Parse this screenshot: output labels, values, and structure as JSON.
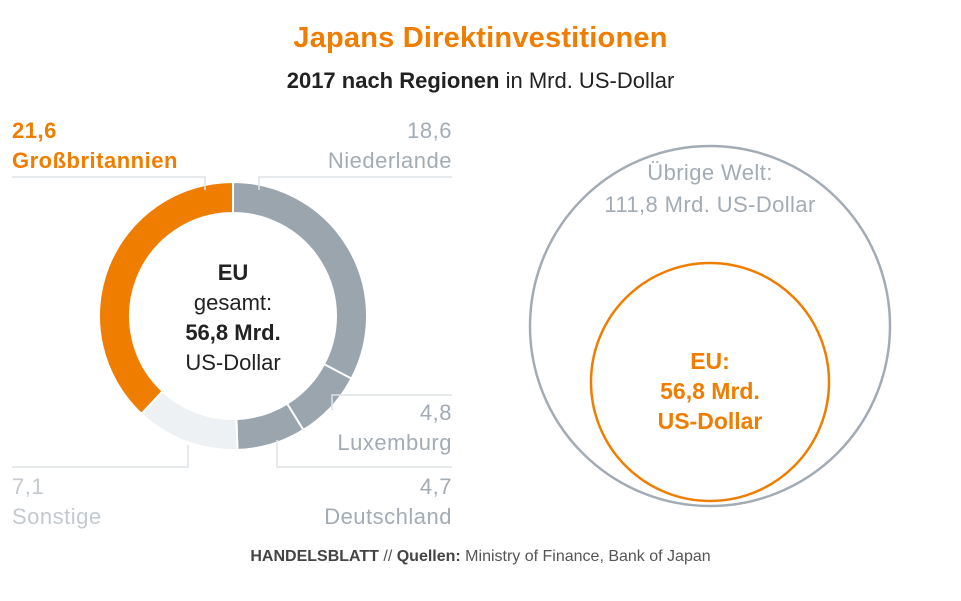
{
  "header": {
    "title": "Japans Direktinvestitionen",
    "subtitle_bold": "2017 nach Regionen",
    "subtitle_rest": " in Mrd. US-Dollar"
  },
  "chart_data": [
    {
      "type": "pie",
      "variant": "donut",
      "unit": "Mrd. US-Dollar",
      "center_label": {
        "line1": "EU",
        "line2": "gesamt:",
        "line3": "56,8 Mrd.",
        "line4": "US-Dollar"
      },
      "slices": [
        {
          "name": "Niederlande",
          "value": 18.6,
          "label": "18,6",
          "color": "#9aa5ae"
        },
        {
          "name": "Luxemburg",
          "value": 4.8,
          "label": "4,8",
          "color": "#9aa5ae"
        },
        {
          "name": "Deutschland",
          "value": 4.7,
          "label": "4,7",
          "color": "#9aa5ae"
        },
        {
          "name": "Sonstige",
          "value": 7.1,
          "label": "7,1",
          "color": "#eef1f4"
        },
        {
          "name": "Großbritannien",
          "value": 21.6,
          "label": "21,6",
          "color": "#ef7d00"
        }
      ]
    },
    {
      "type": "proportional_circles",
      "circles": [
        {
          "name": "Übrige Welt",
          "value": 111.8,
          "label_line1": "Übrige Welt:",
          "label_line2": "111,8 Mrd. US-Dollar",
          "color": "#a3acb4"
        },
        {
          "name": "EU",
          "value": 56.8,
          "label_line1": "EU:",
          "label_line2": "56,8 Mrd.",
          "label_line3": "US-Dollar",
          "color": "#ef7d00"
        }
      ]
    }
  ],
  "footer": {
    "brand": "HANDELSBLATT",
    "separator": " // ",
    "source_label": "Quellen:",
    "source_text": " Ministry of Finance, Bank of Japan"
  },
  "colors": {
    "accent": "#ef7d00",
    "gray": "#9aa5ae",
    "light": "#eef1f4"
  }
}
